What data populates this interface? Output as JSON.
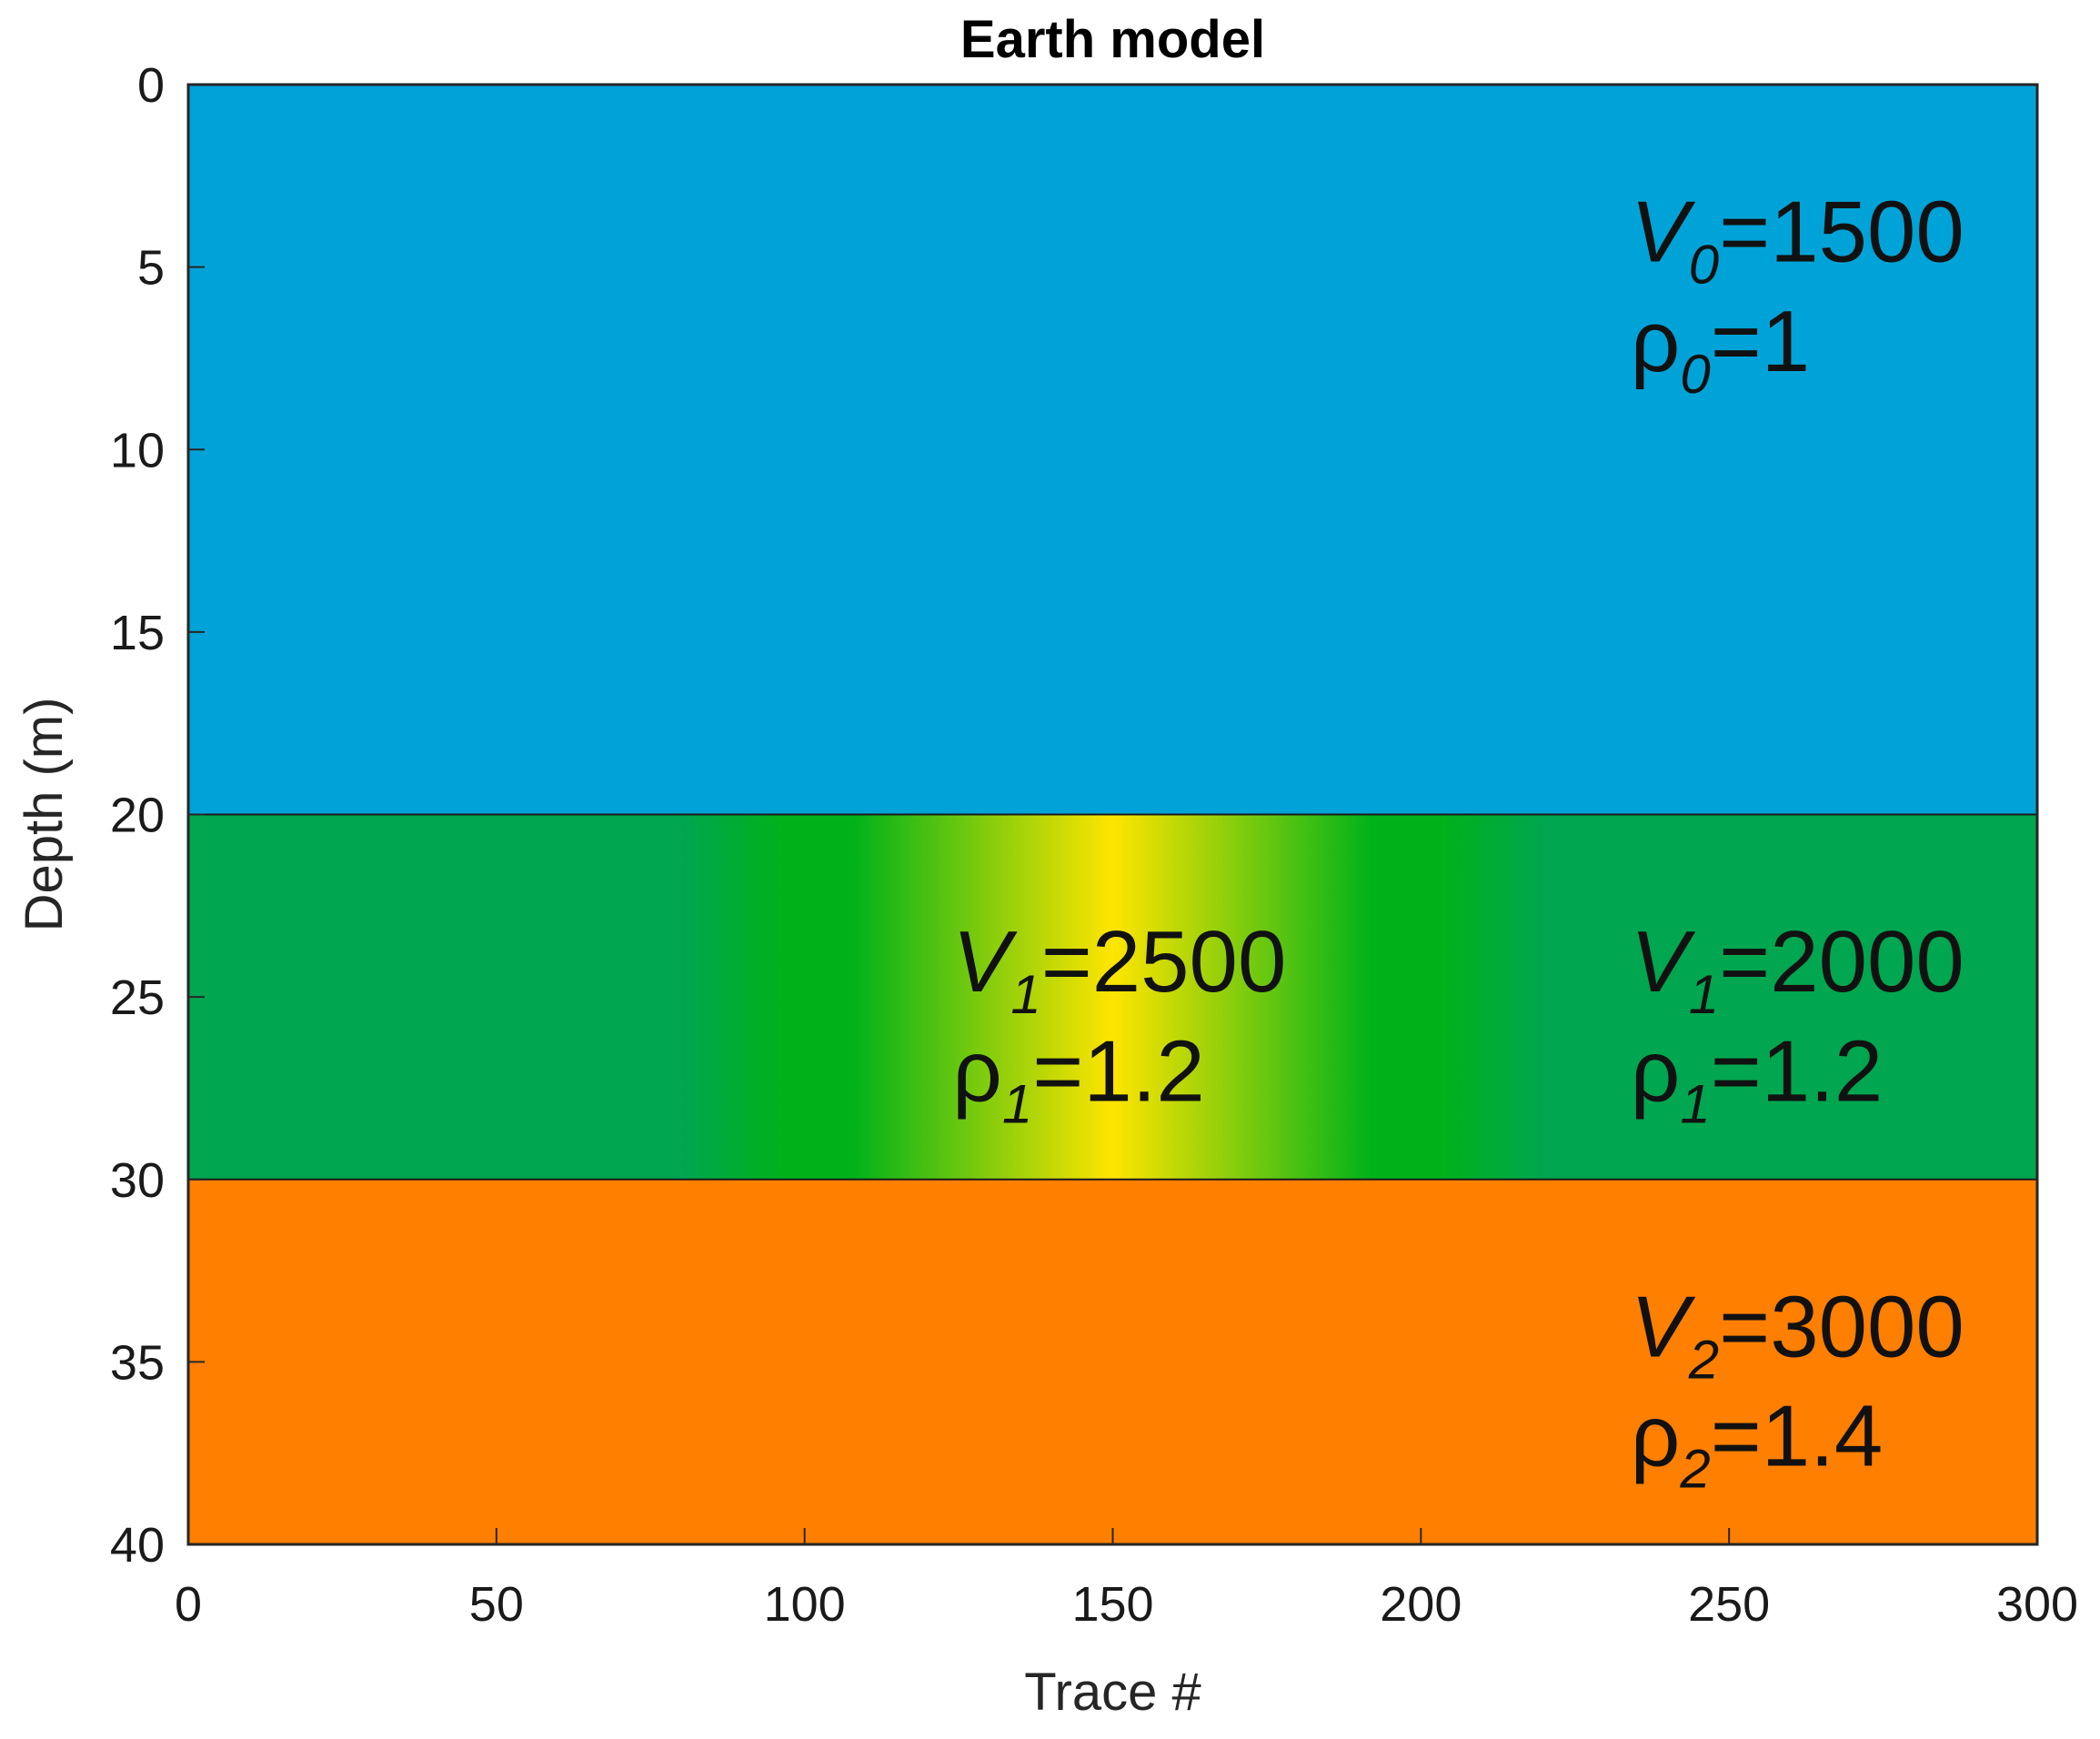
{
  "chart_data": {
    "type": "heatmap",
    "title": "Earth model",
    "xlabel": "Trace #",
    "ylabel": "Depth (m)",
    "xlim": [
      0,
      300
    ],
    "ylim": [
      0,
      40
    ],
    "y_reversed": true,
    "xticks": [
      "0",
      "50",
      "100",
      "150",
      "200",
      "250",
      "300"
    ],
    "yticks": [
      "0",
      "5",
      "10",
      "15",
      "20",
      "25",
      "30",
      "35",
      "40"
    ],
    "grid": false,
    "layers": [
      {
        "name": "layer-0",
        "depth_top": 0,
        "depth_bottom": 20,
        "color": "#00a3d7",
        "velocity": 1500,
        "density": 1
      },
      {
        "name": "layer-1",
        "depth_top": 20,
        "depth_bottom": 30,
        "color": "#00a650",
        "velocity": 2000,
        "density": 1.2,
        "anomaly": {
          "x_range": [
            80,
            220
          ],
          "center": 150,
          "velocity": 2500,
          "density": 1.2,
          "colors": [
            "#00a650",
            "#00b21a",
            "#ffe500"
          ]
        }
      },
      {
        "name": "layer-2",
        "depth_top": 30,
        "depth_bottom": 40,
        "color": "#ff7f00",
        "velocity": 3000,
        "density": 1.4
      }
    ],
    "annotations": [
      {
        "id": "v0",
        "symbol": "V",
        "sub": "0",
        "text": "=1500",
        "x": 234,
        "y": 4.0
      },
      {
        "id": "rho0",
        "symbol": "ρ",
        "sub": "0",
        "text": "=1",
        "x": 234,
        "y": 7.0
      },
      {
        "id": "v1-anom",
        "symbol": "V",
        "sub": "1",
        "text": "=2500",
        "x": 124,
        "y": 24.0
      },
      {
        "id": "rho1-anom",
        "symbol": "ρ",
        "sub": "1",
        "text": "=1.2",
        "x": 124,
        "y": 27.0
      },
      {
        "id": "v1",
        "symbol": "V",
        "sub": "1",
        "text": "=2000",
        "x": 234,
        "y": 24.0
      },
      {
        "id": "rho1",
        "symbol": "ρ",
        "sub": "1",
        "text": "=1.2",
        "x": 234,
        "y": 27.0
      },
      {
        "id": "v2",
        "symbol": "V",
        "sub": "2",
        "text": "=3000",
        "x": 234,
        "y": 34.0
      },
      {
        "id": "rho2",
        "symbol": "ρ",
        "sub": "2",
        "text": "=1.4",
        "x": 234,
        "y": 37.0
      }
    ]
  }
}
